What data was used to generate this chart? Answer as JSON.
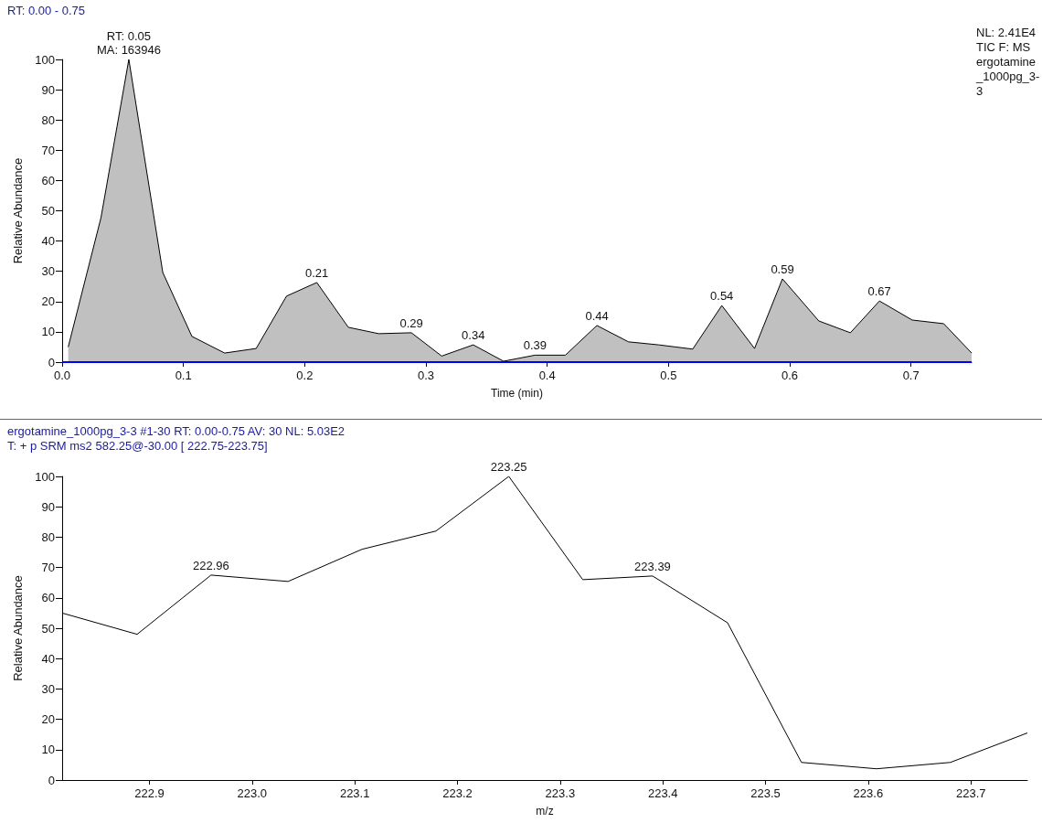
{
  "chart_data": [
    {
      "type": "area",
      "title": "RT: 0.00 - 0.75",
      "xlabel": "Time (min)",
      "ylabel": "Relative Abundance",
      "annotations": [
        "NL: 2.41E4 TIC F: MS ergotamine_1000pg_3-3",
        {
          "text": "RT: 0.05",
          "x": 0.055,
          "y": 100
        },
        {
          "text": "MA: 163946",
          "x": 0.055,
          "y": 100
        },
        {
          "text": "0.21",
          "x": 0.21,
          "y": 26.3
        },
        {
          "text": "0.29",
          "x": 0.288,
          "y": 9.7
        },
        {
          "text": "0.34",
          "x": 0.339,
          "y": 5.7
        },
        {
          "text": "0.39",
          "x": 0.39,
          "y": 2.3
        },
        {
          "text": "0.44",
          "x": 0.441,
          "y": 12.1
        },
        {
          "text": "0.54",
          "x": 0.544,
          "y": 18.7
        },
        {
          "text": "0.59",
          "x": 0.594,
          "y": 27.5
        },
        {
          "text": "0.67",
          "x": 0.674,
          "y": 20.2
        }
      ],
      "series": [
        {
          "color": "#c0c0c0",
          "x": [
            0.005,
            0.032,
            0.055,
            0.083,
            0.107,
            0.134,
            0.16,
            0.185,
            0.21,
            0.236,
            0.261,
            0.288,
            0.313,
            0.339,
            0.364,
            0.39,
            0.415,
            0.441,
            0.467,
            0.492,
            0.52,
            0.544,
            0.571,
            0.594,
            0.624,
            0.65,
            0.674,
            0.701,
            0.727,
            0.75
          ],
          "values": [
            5,
            47.7,
            100,
            29.6,
            8.5,
            3,
            4.5,
            21.8,
            26.3,
            11.5,
            9.4,
            9.7,
            2,
            5.7,
            0.3,
            2.3,
            2.3,
            12.1,
            6.7,
            5.7,
            4.3,
            18.7,
            4.5,
            27.5,
            13.6,
            9.7,
            20.2,
            13.9,
            12.7,
            3
          ]
        }
      ],
      "xlim": [
        0,
        0.75
      ],
      "xticks": [
        {
          "value": 0,
          "label": "0.0"
        },
        0.1,
        0.2,
        0.3,
        0.4,
        0.5,
        0.6,
        0.7
      ],
      "ylim": [
        0,
        100
      ],
      "yticks": [
        0,
        10,
        20,
        30,
        40,
        50,
        60,
        70,
        80,
        90,
        100
      ],
      "ref_lines": [
        {
          "axis": "y",
          "value": 0,
          "color": "#0000ff"
        }
      ],
      "grid": false,
      "marker": "none",
      "line_style": "solid"
    },
    {
      "type": "line",
      "title": "ergotamine_1000pg_3-3 #1-30 RT: 0.00-0.75 AV: 30 NL: 5.03E2",
      "subtitle": "T: + p SRM ms2 582.25@-30.00 [ 222.75-223.75]",
      "xlabel": "m/z",
      "ylabel": "Relative Abundance",
      "annotations": [
        {
          "text": "222.96",
          "x": 222.96,
          "y": 67.5
        },
        {
          "text": "223.25",
          "x": 223.25,
          "y": 100
        },
        {
          "text": "223.39",
          "x": 223.39,
          "y": 67.2
        }
      ],
      "series": [
        {
          "color": "#000000",
          "x": [
            222.815,
            222.888,
            222.96,
            223.035,
            223.107,
            223.179,
            223.25,
            223.322,
            223.39,
            223.463,
            223.535,
            223.608,
            223.68,
            223.755
          ],
          "values": [
            55,
            48,
            67.5,
            65.4,
            76,
            82,
            100,
            66,
            67.2,
            51.8,
            5.8,
            3.7,
            5.8,
            15.5
          ]
        }
      ],
      "xlim": [
        222.815,
        223.755
      ],
      "xticks": [
        222.9,
        {
          "value": 223,
          "label": "223.0"
        },
        223.1,
        223.2,
        223.3,
        223.4,
        223.5,
        223.6,
        223.7
      ],
      "ylim": [
        0,
        100
      ],
      "yticks": [
        0,
        10,
        20,
        30,
        40,
        50,
        60,
        70,
        80,
        90,
        100
      ],
      "grid": false,
      "marker": "none",
      "line_style": "solid"
    }
  ]
}
